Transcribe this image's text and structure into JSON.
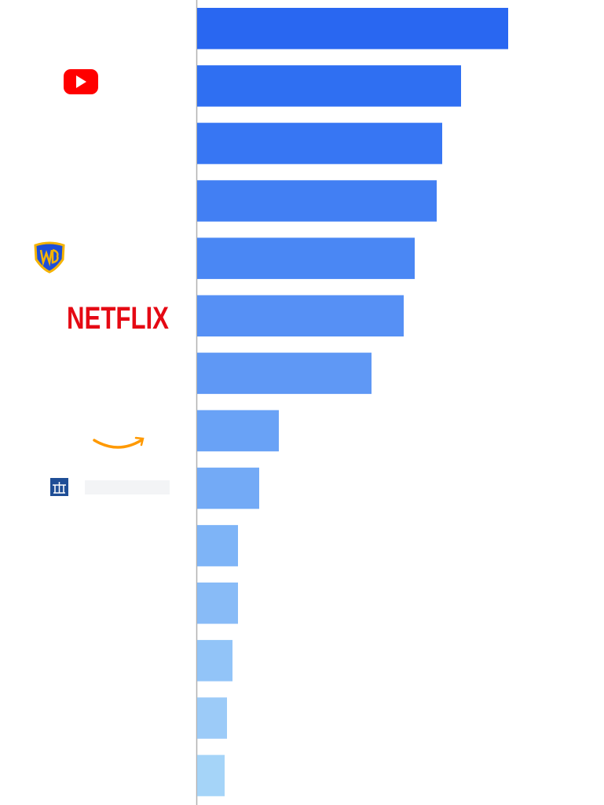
{
  "chart_data": {
    "type": "bar",
    "orientation": "horizontal",
    "categories": [
      null,
      null,
      null,
      null,
      null,
      "NETFLIX",
      null,
      null,
      null,
      null,
      null,
      null,
      null,
      null
    ],
    "values": [
      396,
      336,
      312,
      305,
      277,
      263,
      222,
      104,
      79,
      52,
      52,
      45,
      38,
      35
    ],
    "colors": [
      "#2967f1",
      "#2f6ff2",
      "#3776f3",
      "#427ff3",
      "#4a87f4",
      "#5690f5",
      "#5f98f5",
      "#69a2f6",
      "#73aaf6",
      "#7eb4f7",
      "#88bbf7",
      "#92c4f8",
      "#9ccbf8",
      "#a5d4f8"
    ],
    "xlim": [
      0,
      518
    ]
  }
}
